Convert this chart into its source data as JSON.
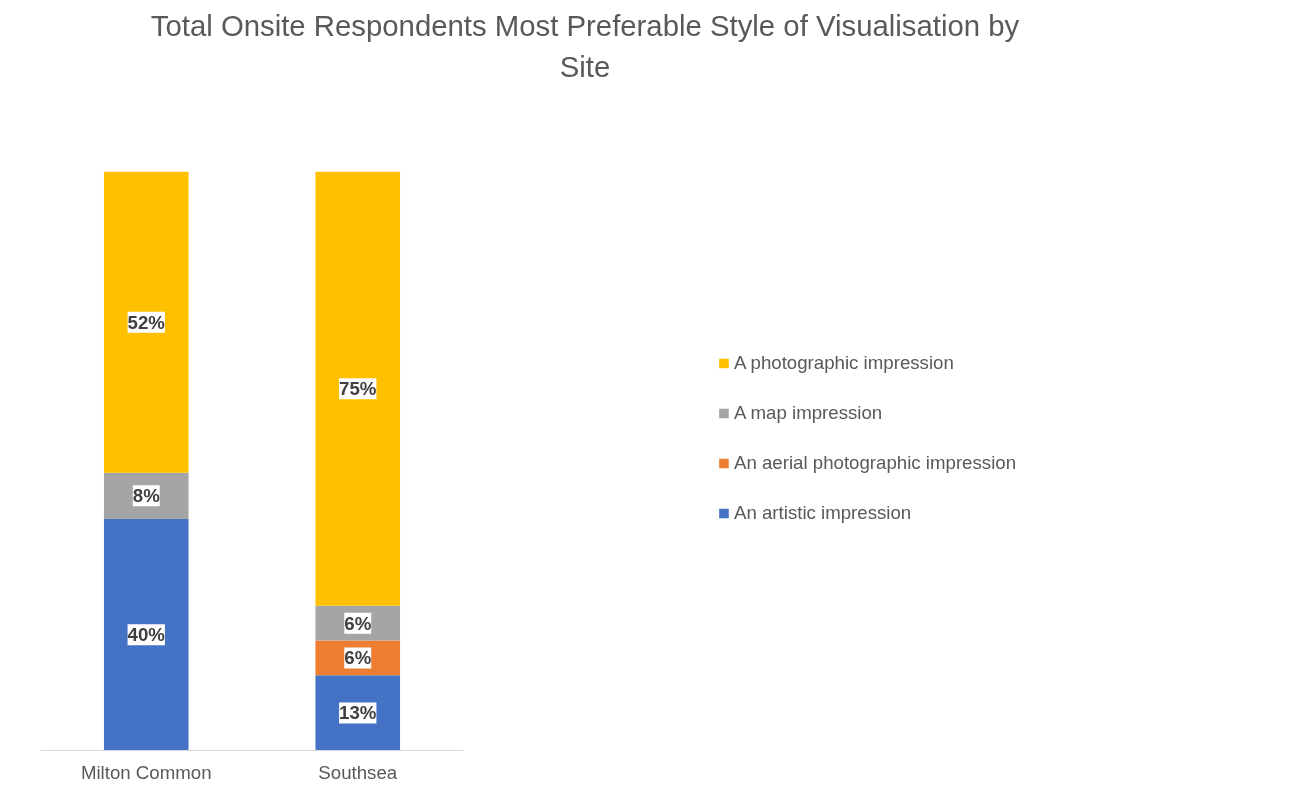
{
  "chart_data": {
    "type": "bar",
    "title": "Total Onsite Respondents Most Preferable Style of Visualisation by Site",
    "categories": [
      "Milton Common",
      "Southsea"
    ],
    "stacked": true,
    "legend": "right",
    "grid": false,
    "series": [
      {
        "name": "An artistic impression",
        "color": "#4472c4",
        "values": [
          40,
          13
        ],
        "value_labels": [
          "40%",
          "13%"
        ]
      },
      {
        "name": "An aerial photographic impression",
        "color": "#ed7d31",
        "values": [
          null,
          6
        ],
        "value_labels": [
          null,
          "6%"
        ]
      },
      {
        "name": "A map impression",
        "color": "#a5a5a5",
        "values": [
          8,
          6
        ],
        "value_labels": [
          "8%",
          "6%"
        ]
      },
      {
        "name": "A photographic impression",
        "color": "#ffc000",
        "values": [
          52,
          75
        ],
        "value_labels": [
          "52%",
          "75%"
        ]
      }
    ]
  }
}
